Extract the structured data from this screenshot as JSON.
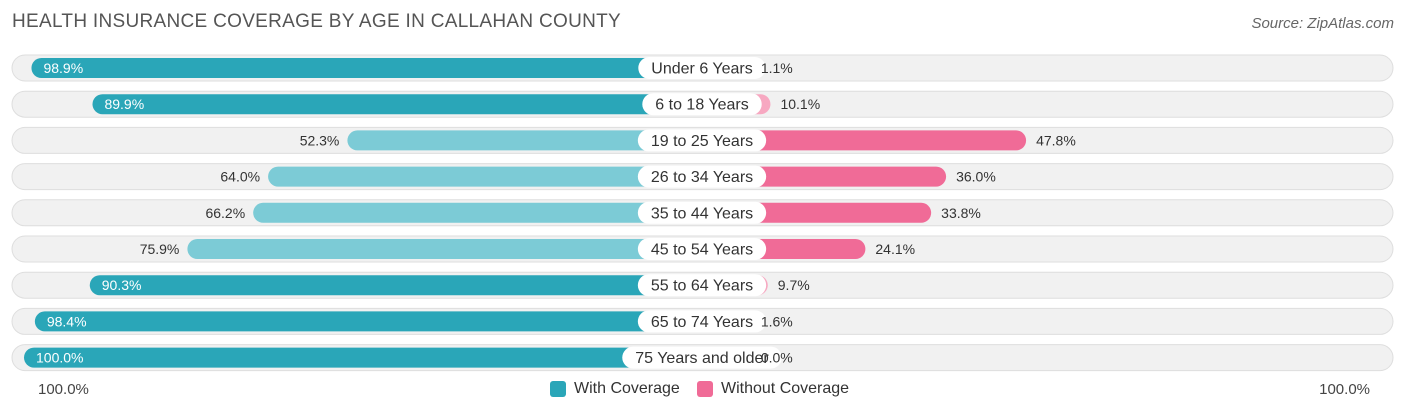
{
  "header": {
    "title": "HEALTH INSURANCE COVERAGE BY AGE IN CALLAHAN COUNTY",
    "source": "Source: ZipAtlas.com"
  },
  "colors": {
    "with_strong": "#2aa6b8",
    "with_light": "#7ccbd6",
    "without_strong": "#f06b97",
    "without_light": "#f7a8c1"
  },
  "chart_data": {
    "type": "bar",
    "orientation": "diverging-horizontal",
    "title": "HEALTH INSURANCE COVERAGE BY AGE IN CALLAHAN COUNTY",
    "categories": [
      "Under 6 Years",
      "6 to 18 Years",
      "19 to 25 Years",
      "26 to 34 Years",
      "35 to 44 Years",
      "45 to 54 Years",
      "55 to 64 Years",
      "65 to 74 Years",
      "75 Years and older"
    ],
    "series": [
      {
        "name": "With Coverage",
        "values": [
          98.9,
          89.9,
          52.3,
          64.0,
          66.2,
          75.9,
          90.3,
          98.4,
          100.0
        ],
        "labels": [
          "98.9%",
          "89.9%",
          "52.3%",
          "64.0%",
          "66.2%",
          "75.9%",
          "90.3%",
          "98.4%",
          "100.0%"
        ]
      },
      {
        "name": "Without Coverage",
        "values": [
          1.1,
          10.1,
          47.8,
          36.0,
          33.8,
          24.1,
          9.7,
          1.6,
          0.0
        ],
        "labels": [
          "1.1%",
          "10.1%",
          "47.8%",
          "36.0%",
          "33.8%",
          "24.1%",
          "9.7%",
          "1.6%",
          "0.0%"
        ]
      }
    ],
    "axis": {
      "left_label": "100.0%",
      "right_label": "100.0%",
      "range": [
        0,
        100
      ]
    },
    "legend": [
      "With Coverage",
      "Without Coverage"
    ]
  }
}
